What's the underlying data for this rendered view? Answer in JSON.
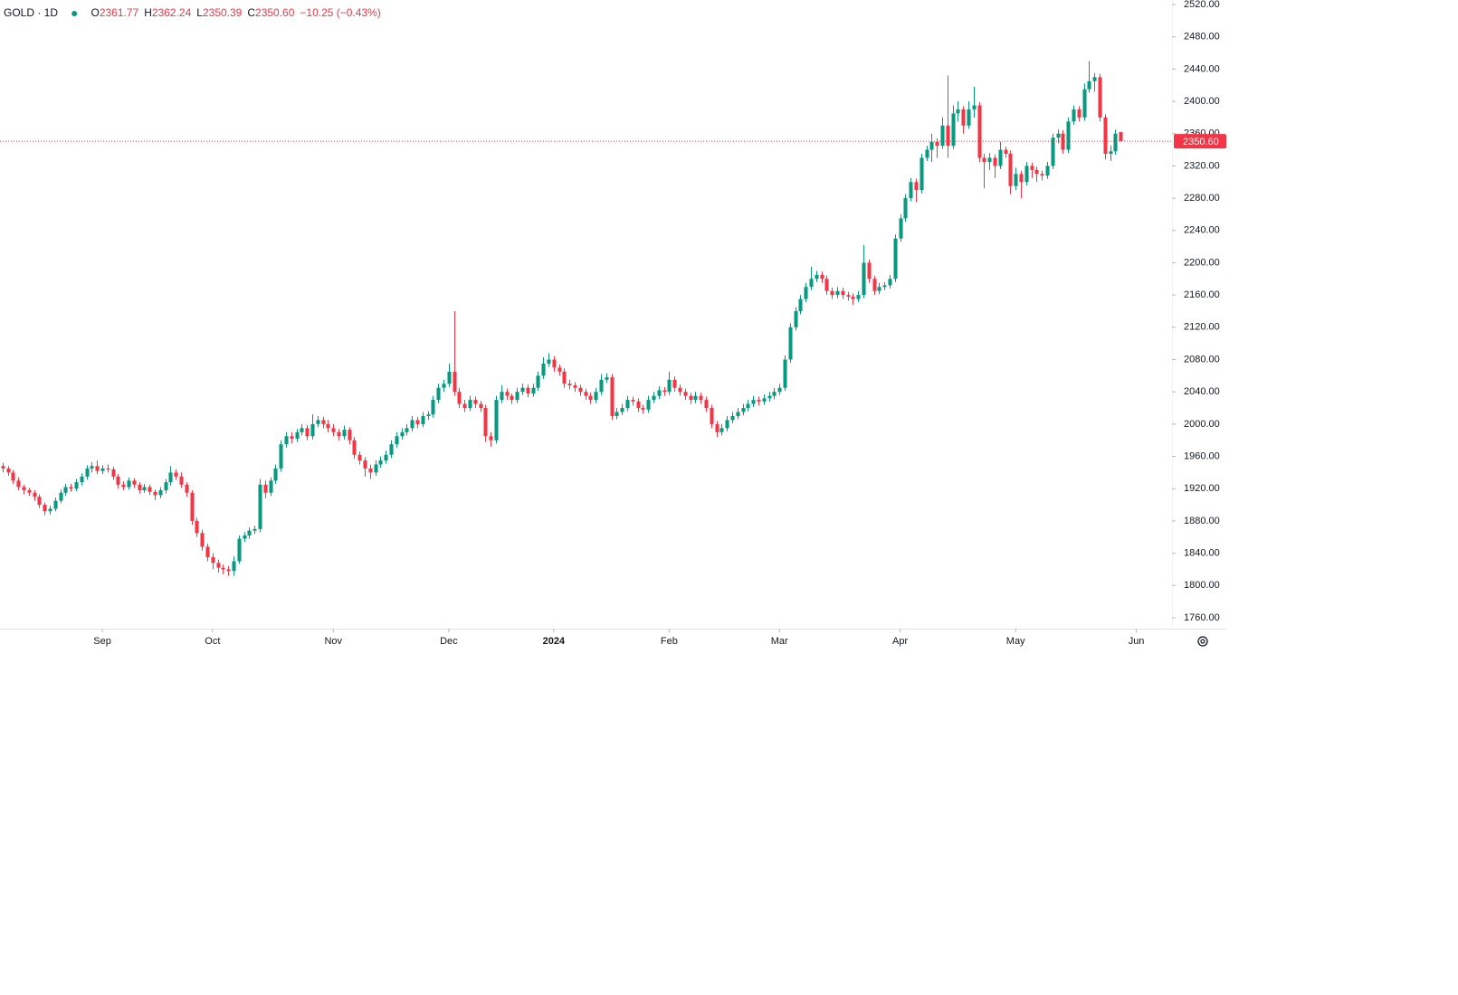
{
  "chart_data": {
    "type": "candlestick",
    "symbol": "GOLD · 1D",
    "legend": [
      {
        "key": "O",
        "value": "2361.77"
      },
      {
        "key": "H",
        "value": "2362.24"
      },
      {
        "key": "L",
        "value": "2350.39"
      },
      {
        "key": "C",
        "value": "2350.60"
      }
    ],
    "change": "−10.25 (−0.43%)",
    "up_color": "#089981",
    "down_color": "#f23645",
    "last_price": {
      "value": 2350.6,
      "label": "2350.60"
    },
    "xlim": [
      -0.5,
      222.8
    ],
    "ylim": [
      1746.5,
      2525.6
    ],
    "xticks": [
      {
        "value": 19,
        "label": "Sep"
      },
      {
        "value": 40,
        "label": "Oct"
      },
      {
        "value": 63,
        "label": "Nov"
      },
      {
        "value": 85,
        "label": "Dec"
      },
      {
        "value": 105,
        "label": "2024",
        "bold": true
      },
      {
        "value": 127,
        "label": "Feb"
      },
      {
        "value": 148,
        "label": "Mar"
      },
      {
        "value": 171,
        "label": "Apr"
      },
      {
        "value": 193,
        "label": "May"
      },
      {
        "value": 216,
        "label": "Jun"
      }
    ],
    "yticks": [
      {
        "value": 1760,
        "label": "1760.00"
      },
      {
        "value": 1800,
        "label": "1800.00"
      },
      {
        "value": 1840,
        "label": "1840.00"
      },
      {
        "value": 1880,
        "label": "1880.00"
      },
      {
        "value": 1920,
        "label": "1920.00"
      },
      {
        "value": 1960,
        "label": "1960.00"
      },
      {
        "value": 2000,
        "label": "2000.00"
      },
      {
        "value": 2040,
        "label": "2040.00"
      },
      {
        "value": 2080,
        "label": "2080.00"
      },
      {
        "value": 2120,
        "label": "2120.00"
      },
      {
        "value": 2160,
        "label": "2160.00"
      },
      {
        "value": 2200,
        "label": "2200.00"
      },
      {
        "value": 2240,
        "label": "2240.00"
      },
      {
        "value": 2280,
        "label": "2280.00"
      },
      {
        "value": 2320,
        "label": "2320.00"
      },
      {
        "value": 2360,
        "label": "2360.00"
      },
      {
        "value": 2400,
        "label": "2400.00"
      },
      {
        "value": 2440,
        "label": "2440.00"
      },
      {
        "value": 2480,
        "label": "2480.00"
      },
      {
        "value": 2520,
        "label": "2520.00"
      }
    ],
    "candles": [
      [
        1948,
        1952,
        1940,
        1945
      ],
      [
        1945,
        1948,
        1936,
        1940
      ],
      [
        1940,
        1943,
        1926,
        1930
      ],
      [
        1930,
        1934,
        1918,
        1922
      ],
      [
        1922,
        1925,
        1913,
        1918
      ],
      [
        1918,
        1921,
        1911,
        1915
      ],
      [
        1915,
        1918,
        1905,
        1910
      ],
      [
        1910,
        1913,
        1896,
        1900
      ],
      [
        1900,
        1903,
        1887,
        1892
      ],
      [
        1892,
        1899,
        1888,
        1895
      ],
      [
        1895,
        1909,
        1892,
        1905
      ],
      [
        1905,
        1919,
        1902,
        1915
      ],
      [
        1915,
        1926,
        1911,
        1922
      ],
      [
        1922,
        1926,
        1916,
        1920
      ],
      [
        1920,
        1932,
        1917,
        1928
      ],
      [
        1928,
        1939,
        1924,
        1935
      ],
      [
        1935,
        1949,
        1931,
        1945
      ],
      [
        1945,
        1953,
        1940,
        1948
      ],
      [
        1948,
        1955,
        1938,
        1942
      ],
      [
        1942,
        1949,
        1938,
        1945
      ],
      [
        1945,
        1950,
        1940,
        1944
      ],
      [
        1944,
        1947,
        1931,
        1935
      ],
      [
        1935,
        1938,
        1920,
        1925
      ],
      [
        1925,
        1929,
        1918,
        1922
      ],
      [
        1922,
        1934,
        1919,
        1930
      ],
      [
        1930,
        1933,
        1921,
        1925
      ],
      [
        1925,
        1928,
        1914,
        1918
      ],
      [
        1918,
        1926,
        1915,
        1922
      ],
      [
        1922,
        1925,
        1912,
        1916
      ],
      [
        1916,
        1919,
        1906,
        1912
      ],
      [
        1912,
        1922,
        1908,
        1918
      ],
      [
        1918,
        1932,
        1914,
        1928
      ],
      [
        1928,
        1948,
        1924,
        1940
      ],
      [
        1940,
        1944,
        1931,
        1935
      ],
      [
        1935,
        1940,
        1921,
        1925
      ],
      [
        1925,
        1928,
        1910,
        1915
      ],
      [
        1915,
        1918,
        1875,
        1880
      ],
      [
        1880,
        1884,
        1860,
        1865
      ],
      [
        1865,
        1869,
        1843,
        1848
      ],
      [
        1848,
        1852,
        1830,
        1835
      ],
      [
        1835,
        1840,
        1820,
        1828
      ],
      [
        1828,
        1832,
        1816,
        1822
      ],
      [
        1822,
        1826,
        1814,
        1820
      ],
      [
        1820,
        1824,
        1812,
        1818
      ],
      [
        1818,
        1836,
        1812,
        1830
      ],
      [
        1830,
        1862,
        1827,
        1858
      ],
      [
        1858,
        1866,
        1854,
        1862
      ],
      [
        1862,
        1872,
        1858,
        1868
      ],
      [
        1868,
        1874,
        1864,
        1870
      ],
      [
        1870,
        1932,
        1866,
        1925
      ],
      [
        1925,
        1930,
        1908,
        1915
      ],
      [
        1915,
        1934,
        1911,
        1930
      ],
      [
        1930,
        1950,
        1926,
        1945
      ],
      [
        1945,
        1980,
        1941,
        1975
      ],
      [
        1975,
        1990,
        1971,
        1985
      ],
      [
        1985,
        1990,
        1976,
        1982
      ],
      [
        1982,
        1994,
        1978,
        1990
      ],
      [
        1990,
        2000,
        1986,
        1995
      ],
      [
        1995,
        1999,
        1980,
        1985
      ],
      [
        1985,
        2012,
        1981,
        2000
      ],
      [
        2000,
        2010,
        1996,
        2005
      ],
      [
        2005,
        2009,
        1995,
        2000
      ],
      [
        2000,
        2005,
        1990,
        1995
      ],
      [
        1995,
        2000,
        1985,
        1990
      ],
      [
        1990,
        1994,
        1980,
        1985
      ],
      [
        1985,
        1998,
        1981,
        1993
      ],
      [
        1993,
        1996,
        1975,
        1980
      ],
      [
        1980,
        1984,
        1957,
        1962
      ],
      [
        1962,
        1966,
        1950,
        1955
      ],
      [
        1955,
        1959,
        1935,
        1945
      ],
      [
        1945,
        1950,
        1932,
        1940
      ],
      [
        1940,
        1955,
        1936,
        1950
      ],
      [
        1950,
        1960,
        1946,
        1955
      ],
      [
        1955,
        1967,
        1951,
        1962
      ],
      [
        1962,
        1980,
        1958,
        1975
      ],
      [
        1975,
        1990,
        1971,
        1985
      ],
      [
        1985,
        1995,
        1981,
        1990
      ],
      [
        1990,
        2000,
        1986,
        1995
      ],
      [
        1995,
        2010,
        1991,
        2005
      ],
      [
        2005,
        2009,
        1995,
        2000
      ],
      [
        2000,
        2015,
        1996,
        2010
      ],
      [
        2010,
        2016,
        2005,
        2012
      ],
      [
        2012,
        2035,
        2008,
        2030
      ],
      [
        2030,
        2050,
        2026,
        2045
      ],
      [
        2045,
        2055,
        2040,
        2050
      ],
      [
        2050,
        2075,
        2046,
        2065
      ],
      [
        2065,
        2140,
        2035,
        2040
      ],
      [
        2040,
        2045,
        2020,
        2025
      ],
      [
        2025,
        2030,
        2015,
        2020
      ],
      [
        2020,
        2035,
        2016,
        2030
      ],
      [
        2030,
        2034,
        2020,
        2025
      ],
      [
        2025,
        2029,
        2015,
        2020
      ],
      [
        2020,
        2024,
        1978,
        1985
      ],
      [
        1985,
        1990,
        1972,
        1980
      ],
      [
        1980,
        2035,
        1976,
        2030
      ],
      [
        2030,
        2048,
        2026,
        2040
      ],
      [
        2040,
        2044,
        2030,
        2035
      ],
      [
        2035,
        2038,
        2025,
        2030
      ],
      [
        2030,
        2045,
        2026,
        2040
      ],
      [
        2040,
        2050,
        2036,
        2045
      ],
      [
        2045,
        2049,
        2033,
        2038
      ],
      [
        2038,
        2050,
        2034,
        2045
      ],
      [
        2045,
        2065,
        2041,
        2060
      ],
      [
        2060,
        2083,
        2056,
        2075
      ],
      [
        2075,
        2088,
        2071,
        2080
      ],
      [
        2080,
        2084,
        2065,
        2070
      ],
      [
        2070,
        2074,
        2060,
        2065
      ],
      [
        2065,
        2069,
        2045,
        2050
      ],
      [
        2050,
        2055,
        2043,
        2048
      ],
      [
        2048,
        2052,
        2040,
        2045
      ],
      [
        2045,
        2049,
        2035,
        2040
      ],
      [
        2040,
        2044,
        2030,
        2035
      ],
      [
        2035,
        2039,
        2025,
        2030
      ],
      [
        2030,
        2045,
        2026,
        2040
      ],
      [
        2040,
        2062,
        2036,
        2055
      ],
      [
        2055,
        2063,
        2051,
        2058
      ],
      [
        2058,
        2062,
        2005,
        2010
      ],
      [
        2010,
        2020,
        2006,
        2015
      ],
      [
        2015,
        2025,
        2011,
        2020
      ],
      [
        2020,
        2035,
        2016,
        2030
      ],
      [
        2030,
        2034,
        2023,
        2028
      ],
      [
        2028,
        2032,
        2015,
        2020
      ],
      [
        2020,
        2024,
        2013,
        2018
      ],
      [
        2018,
        2035,
        2014,
        2030
      ],
      [
        2030,
        2040,
        2026,
        2035
      ],
      [
        2035,
        2047,
        2031,
        2042
      ],
      [
        2042,
        2046,
        2035,
        2040
      ],
      [
        2040,
        2065,
        2036,
        2055
      ],
      [
        2055,
        2059,
        2040,
        2045
      ],
      [
        2045,
        2049,
        2035,
        2040
      ],
      [
        2040,
        2044,
        2030,
        2035
      ],
      [
        2035,
        2039,
        2025,
        2030
      ],
      [
        2030,
        2040,
        2026,
        2035
      ],
      [
        2035,
        2039,
        2025,
        2030
      ],
      [
        2030,
        2034,
        2015,
        2020
      ],
      [
        2020,
        2024,
        1995,
        2000
      ],
      [
        2000,
        2004,
        1984,
        1990
      ],
      [
        1990,
        2000,
        1986,
        1995
      ],
      [
        1995,
        2010,
        1991,
        2005
      ],
      [
        2005,
        2015,
        2001,
        2010
      ],
      [
        2010,
        2020,
        2006,
        2015
      ],
      [
        2015,
        2025,
        2011,
        2020
      ],
      [
        2020,
        2030,
        2016,
        2025
      ],
      [
        2025,
        2035,
        2021,
        2030
      ],
      [
        2030,
        2034,
        2023,
        2028
      ],
      [
        2028,
        2037,
        2024,
        2032
      ],
      [
        2032,
        2040,
        2028,
        2035
      ],
      [
        2035,
        2045,
        2031,
        2040
      ],
      [
        2040,
        2050,
        2036,
        2045
      ],
      [
        2045,
        2085,
        2041,
        2080
      ],
      [
        2080,
        2125,
        2076,
        2120
      ],
      [
        2120,
        2145,
        2116,
        2140
      ],
      [
        2140,
        2160,
        2136,
        2155
      ],
      [
        2155,
        2175,
        2151,
        2170
      ],
      [
        2170,
        2195,
        2166,
        2180
      ],
      [
        2180,
        2190,
        2176,
        2185
      ],
      [
        2185,
        2189,
        2175,
        2180
      ],
      [
        2180,
        2184,
        2160,
        2165
      ],
      [
        2165,
        2169,
        2155,
        2160
      ],
      [
        2160,
        2170,
        2156,
        2165
      ],
      [
        2165,
        2169,
        2155,
        2160
      ],
      [
        2160,
        2164,
        2153,
        2158
      ],
      [
        2158,
        2162,
        2148,
        2155
      ],
      [
        2155,
        2165,
        2151,
        2160
      ],
      [
        2160,
        2222,
        2156,
        2200
      ],
      [
        2200,
        2204,
        2175,
        2180
      ],
      [
        2180,
        2184,
        2160,
        2165
      ],
      [
        2165,
        2175,
        2161,
        2170
      ],
      [
        2170,
        2176,
        2166,
        2172
      ],
      [
        2172,
        2185,
        2168,
        2180
      ],
      [
        2180,
        2235,
        2176,
        2230
      ],
      [
        2230,
        2260,
        2226,
        2255
      ],
      [
        2255,
        2285,
        2251,
        2280
      ],
      [
        2280,
        2305,
        2276,
        2300
      ],
      [
        2300,
        2304,
        2275,
        2290
      ],
      [
        2290,
        2335,
        2286,
        2330
      ],
      [
        2330,
        2345,
        2326,
        2340
      ],
      [
        2340,
        2360,
        2325,
        2350
      ],
      [
        2350,
        2354,
        2330,
        2345
      ],
      [
        2345,
        2380,
        2341,
        2370
      ],
      [
        2370,
        2432,
        2330,
        2345
      ],
      [
        2345,
        2395,
        2341,
        2385
      ],
      [
        2385,
        2400,
        2375,
        2390
      ],
      [
        2390,
        2394,
        2360,
        2370
      ],
      [
        2370,
        2400,
        2366,
        2390
      ],
      [
        2390,
        2418,
        2380,
        2395
      ],
      [
        2395,
        2399,
        2325,
        2330
      ],
      [
        2330,
        2335,
        2292,
        2325
      ],
      [
        2325,
        2336,
        2315,
        2330
      ],
      [
        2330,
        2334,
        2305,
        2320
      ],
      [
        2320,
        2350,
        2316,
        2340
      ],
      [
        2340,
        2344,
        2330,
        2335
      ],
      [
        2335,
        2339,
        2285,
        2295
      ],
      [
        2295,
        2318,
        2290,
        2310
      ],
      [
        2310,
        2314,
        2280,
        2300
      ],
      [
        2300,
        2325,
        2296,
        2320
      ],
      [
        2320,
        2324,
        2305,
        2315
      ],
      [
        2315,
        2319,
        2300,
        2310
      ],
      [
        2310,
        2314,
        2302,
        2308
      ],
      [
        2308,
        2325,
        2304,
        2320
      ],
      [
        2320,
        2360,
        2316,
        2355
      ],
      [
        2355,
        2365,
        2348,
        2360
      ],
      [
        2360,
        2364,
        2335,
        2340
      ],
      [
        2340,
        2380,
        2336,
        2375
      ],
      [
        2375,
        2395,
        2371,
        2390
      ],
      [
        2390,
        2394,
        2375,
        2380
      ],
      [
        2380,
        2422,
        2376,
        2415
      ],
      [
        2415,
        2450,
        2411,
        2425
      ],
      [
        2425,
        2435,
        2412,
        2430
      ],
      [
        2430,
        2434,
        2375,
        2380
      ],
      [
        2380,
        2384,
        2328,
        2335
      ],
      [
        2335,
        2345,
        2326,
        2338
      ],
      [
        2338,
        2365,
        2334,
        2360
      ],
      [
        2361.77,
        2362.24,
        2350.39,
        2350.6
      ]
    ]
  }
}
